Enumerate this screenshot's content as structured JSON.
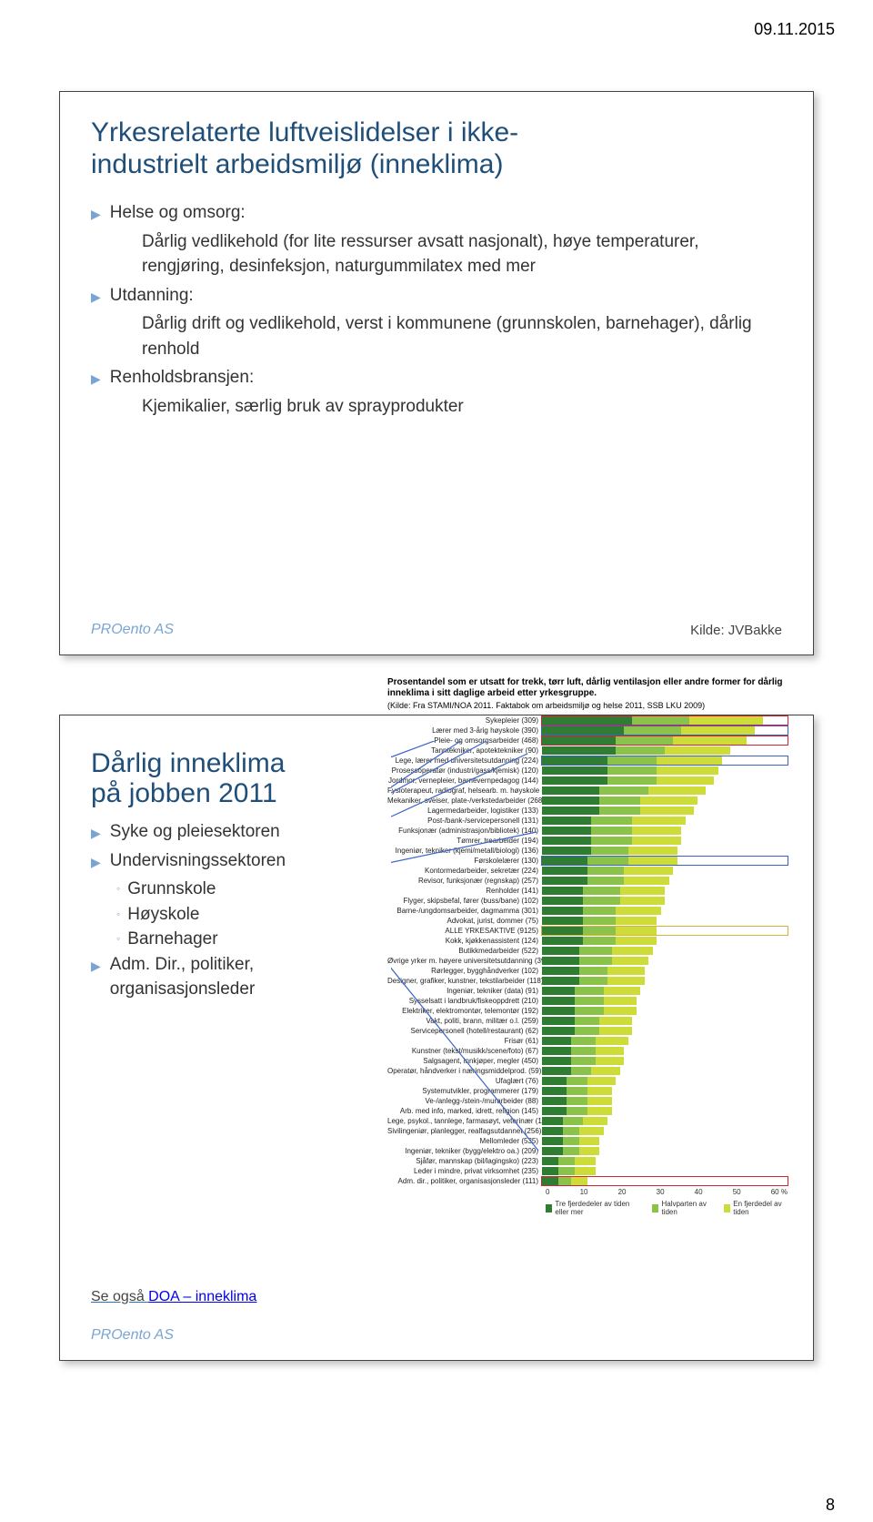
{
  "date": "09.11.2015",
  "page_number": "8",
  "card1": {
    "title_l1": "Yrkesrelaterte luftveislidelser i ikke-",
    "title_l2": "industrielt arbeidsmiljø (inneklima)",
    "items": [
      {
        "label": "Helse og omsorg:",
        "sub": [
          "Dårlig vedlikehold (for lite ressurser avsatt nasjonalt), høye temperaturer, rengjøring, desinfeksjon, naturgummilatex med mer"
        ]
      },
      {
        "label": "Utdanning:",
        "sub": [
          "Dårlig drift og vedlikehold, verst i kommunene (grunnskolen, barnehager), dårlig renhold"
        ]
      },
      {
        "label": "Renholdsbransjen:",
        "sub": [
          "Kjemikalier, særlig bruk av sprayprodukter"
        ]
      }
    ],
    "footer_left": "PROento AS",
    "footer_right": "Kilde: JVBakke"
  },
  "card2": {
    "title_l1": "Dårlig inneklima",
    "title_l2": "på jobben 2011",
    "bullets": [
      {
        "label": "Syke og pleiesektoren"
      },
      {
        "label": "Undervisningssektoren",
        "sub": [
          "Grunnskole",
          "Høyskole",
          "Barnehager"
        ]
      },
      {
        "label": "Adm. Dir., politiker, organisasjonsleder"
      }
    ],
    "see_also": "Se også ",
    "link_text": "DOA – inneklima",
    "footer_left": "PROento AS",
    "chart": {
      "title": "Prosentandel som er utsatt for trekk, tørr luft, dårlig ventilasjon eller andre former for dårlig inneklima i sitt daglige arbeid etter yrkesgruppe.",
      "subtitle": "(Kilde: Fra STAMI/NOA 2011. Faktabok om arbeidsmiljø og helse 2011, SSB LKU 2009)",
      "colors": {
        "seg1": "#2e7d32",
        "seg2": "#8bc34a",
        "seg3": "#cddc39"
      },
      "xmax": 60,
      "xticks": [
        "0",
        "10",
        "20",
        "30",
        "40",
        "50",
        "60 %"
      ],
      "legend": [
        "Tre fjerdedeler av tiden eller mer",
        "Halvparten av tiden",
        "En fjerdedel av tiden"
      ],
      "rows": [
        {
          "label": "Sykepleier (309)",
          "v": [
            22,
            14,
            18
          ],
          "hl": "#d62232"
        },
        {
          "label": "Lærer med 3-årig høyskole (390)",
          "v": [
            20,
            14,
            18
          ],
          "hl": "#3862c8"
        },
        {
          "label": "Pleie- og omsorgsarbeider (468)",
          "v": [
            18,
            14,
            18
          ],
          "hl": "#d62232"
        },
        {
          "label": "Tanntekniker, apotektekniker (90)",
          "v": [
            18,
            12,
            16
          ]
        },
        {
          "label": "Lege, lærer med universitetsutdanning (224)",
          "v": [
            16,
            12,
            16
          ],
          "hl": "#3862c8"
        },
        {
          "label": "Prosessoperatør (industri/gass/kjemisk) (120)",
          "v": [
            16,
            12,
            15
          ]
        },
        {
          "label": "Jordmor, vernepleier, barnevernpedagog (144)",
          "v": [
            16,
            12,
            14
          ]
        },
        {
          "label": "Fysioterapeut, radiograf, helsearb. m. høyskole (95)",
          "v": [
            14,
            12,
            14
          ]
        },
        {
          "label": "Mekaniker, sveiser, plate-/verkstedarbeider (268)",
          "v": [
            14,
            10,
            14
          ]
        },
        {
          "label": "Lagermedarbeider, logistiker (133)",
          "v": [
            14,
            10,
            13
          ]
        },
        {
          "label": "Post-/bank-/servicepersonell (131)",
          "v": [
            12,
            10,
            13
          ]
        },
        {
          "label": "Funksjonær (administrasjon/bibliotek) (140)",
          "v": [
            12,
            10,
            12
          ]
        },
        {
          "label": "Tømrer, trearbeider (194)",
          "v": [
            12,
            10,
            12
          ]
        },
        {
          "label": "Ingeniør, tekniker (kjemi/metall/biologi) (136)",
          "v": [
            12,
            9,
            12
          ]
        },
        {
          "label": "Førskolelærer (130)",
          "v": [
            11,
            10,
            12
          ],
          "hl": "#3862c8"
        },
        {
          "label": "Kontormedarbeider, sekretær (224)",
          "v": [
            11,
            9,
            12
          ]
        },
        {
          "label": "Revisor, funksjonær (regnskap) (257)",
          "v": [
            11,
            9,
            11
          ]
        },
        {
          "label": "Renholder (141)",
          "v": [
            10,
            9,
            11
          ]
        },
        {
          "label": "Flyger, skipsbefal, fører (buss/bane) (102)",
          "v": [
            10,
            9,
            11
          ]
        },
        {
          "label": "Barne-/ungdomsarbeider, dagmamma (301)",
          "v": [
            10,
            8,
            11
          ]
        },
        {
          "label": "Advokat, jurist, dommer (75)",
          "v": [
            10,
            8,
            10
          ]
        },
        {
          "label": "ALLE YRKESAKTIVE (9125)",
          "v": [
            10,
            8,
            10
          ],
          "hl": "#d9b23c"
        },
        {
          "label": "Kokk, kjøkkenassistent (124)",
          "v": [
            10,
            8,
            10
          ]
        },
        {
          "label": "Butikkmedarbeider (522)",
          "v": [
            9,
            8,
            10
          ]
        },
        {
          "label": "Øvrige yrker m. høyere universitetsutdanning (391)",
          "v": [
            9,
            8,
            9
          ]
        },
        {
          "label": "Rørlegger, bygghåndverker (102)",
          "v": [
            9,
            7,
            9
          ]
        },
        {
          "label": "Designer, grafiker, kunstner, tekstilarbeider (118)",
          "v": [
            9,
            7,
            9
          ]
        },
        {
          "label": "Ingeniør, tekniker (data) (91)",
          "v": [
            8,
            7,
            9
          ]
        },
        {
          "label": "Sysselsatt i landbruk/fiskeoppdrett (210)",
          "v": [
            8,
            7,
            8
          ]
        },
        {
          "label": "Elektriker, elektromontør, telemontør (192)",
          "v": [
            8,
            7,
            8
          ]
        },
        {
          "label": "Vakt, politi, brann, militær o.l. (259)",
          "v": [
            8,
            6,
            8
          ]
        },
        {
          "label": "Servicepersonell (hotell/restaurant) (62)",
          "v": [
            8,
            6,
            8
          ]
        },
        {
          "label": "Frisør (61)",
          "v": [
            7,
            6,
            8
          ]
        },
        {
          "label": "Kunstner (tekst/musikk/scene/foto) (67)",
          "v": [
            7,
            6,
            7
          ]
        },
        {
          "label": "Salgsagent, innkjøper, megler (450)",
          "v": [
            7,
            6,
            7
          ]
        },
        {
          "label": "Operatør, håndverker i næringsmiddelprod. (59)",
          "v": [
            7,
            5,
            7
          ]
        },
        {
          "label": "Ufaglært (76)",
          "v": [
            6,
            5,
            7
          ]
        },
        {
          "label": "Systemutvikler, programmerer (179)",
          "v": [
            6,
            5,
            6
          ]
        },
        {
          "label": "Ve-/anlegg-/stein-/murarbeider (88)",
          "v": [
            6,
            5,
            6
          ]
        },
        {
          "label": "Arb. med info, marked, idrett, religion (145)",
          "v": [
            6,
            5,
            6
          ]
        },
        {
          "label": "Lege, psykol., tannlege, farmasøyt, veterinær (136)",
          "v": [
            5,
            5,
            6
          ]
        },
        {
          "label": "Sivilingeniør, planlegger, realfagsutdannet (256)",
          "v": [
            5,
            4,
            6
          ]
        },
        {
          "label": "Mellomleder (535)",
          "v": [
            5,
            4,
            5
          ]
        },
        {
          "label": "Ingeniør, tekniker (bygg/elektro oa.) (209)",
          "v": [
            5,
            4,
            5
          ]
        },
        {
          "label": "Sjåfør, mannskap (bil/lagingsko) (223)",
          "v": [
            4,
            4,
            5
          ]
        },
        {
          "label": "Leder i mindre, privat virksomhet (235)",
          "v": [
            4,
            4,
            5
          ]
        },
        {
          "label": "Adm. dir., politiker, organisasjonsleder (111)",
          "v": [
            4,
            3,
            4
          ],
          "hl": "#d62232"
        }
      ]
    }
  }
}
